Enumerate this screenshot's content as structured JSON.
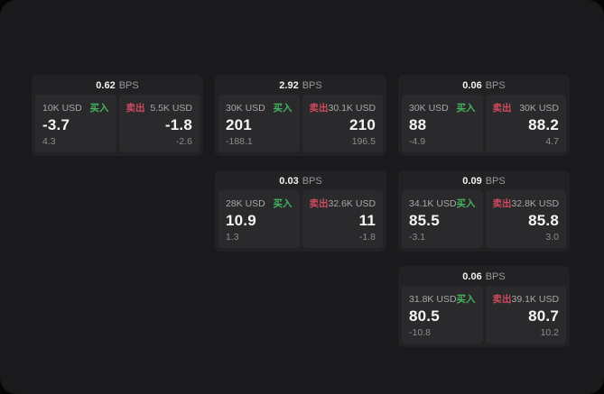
{
  "labels": {
    "bps_unit": "BPS",
    "buy": "买入",
    "sell": "卖出"
  },
  "colors": {
    "background": "#050505",
    "surface": "#1a1a1c",
    "card": "#222224",
    "panel": "#2a2a2c",
    "buy_green": "#44b360",
    "sell_red": "#ce4a5e"
  },
  "cards": [
    {
      "bps": "0.62",
      "buy": {
        "amount": "10K USD",
        "price": "-3.7",
        "delta": "4.3"
      },
      "sell": {
        "amount": "5.5K USD",
        "price": "-1.8",
        "delta": "-2.6"
      }
    },
    {
      "bps": "2.92",
      "buy": {
        "amount": "30K USD",
        "price": "201",
        "delta": "-188.1"
      },
      "sell": {
        "amount": "30.1K USD",
        "price": "210",
        "delta": "196.5"
      }
    },
    {
      "bps": "0.06",
      "buy": {
        "amount": "30K USD",
        "price": "88",
        "delta": "-4.9"
      },
      "sell": {
        "amount": "30K USD",
        "price": "88.2",
        "delta": "4.7"
      }
    },
    {
      "bps": "0.03",
      "buy": {
        "amount": "28K USD",
        "price": "10.9",
        "delta": "1.3"
      },
      "sell": {
        "amount": "32.6K USD",
        "price": "11",
        "delta": "-1.8"
      }
    },
    {
      "bps": "0.09",
      "buy": {
        "amount": "34.1K USD",
        "price": "85.5",
        "delta": "-3.1"
      },
      "sell": {
        "amount": "32.8K USD",
        "price": "85.8",
        "delta": "3.0"
      }
    },
    {
      "bps": "0.06",
      "buy": {
        "amount": "31.8K USD",
        "price": "80.5",
        "delta": "-10.8"
      },
      "sell": {
        "amount": "39.1K USD",
        "price": "80.7",
        "delta": "10.2"
      }
    }
  ]
}
